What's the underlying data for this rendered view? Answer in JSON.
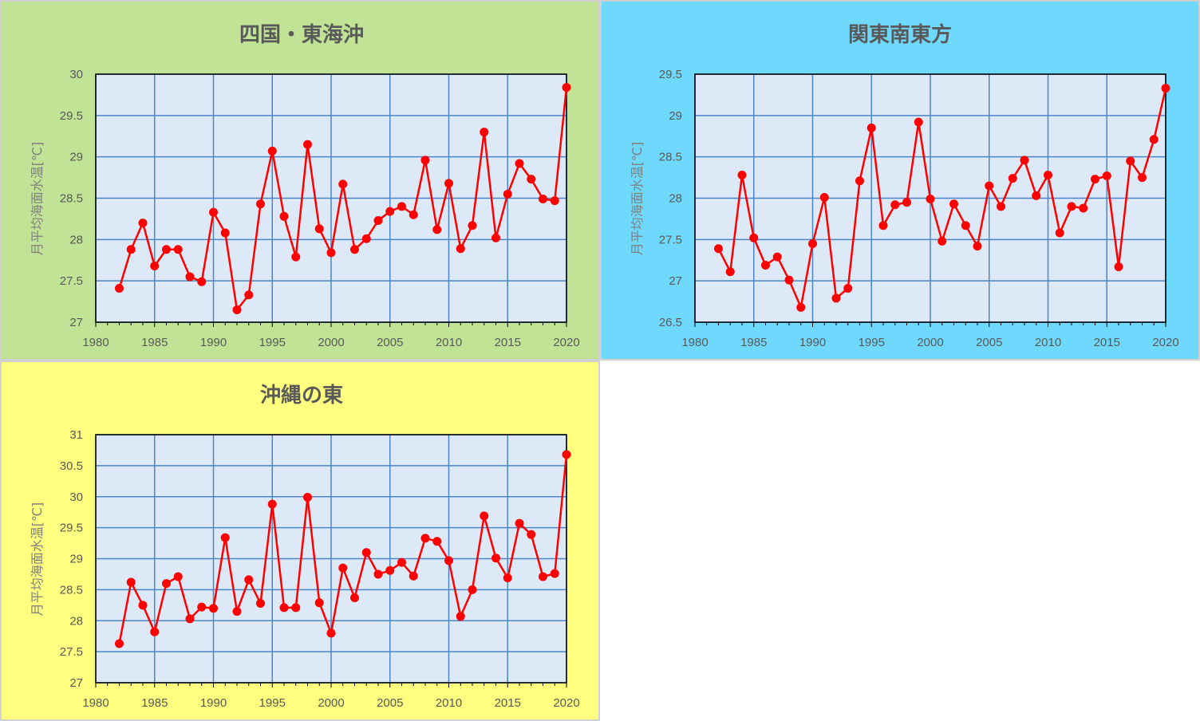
{
  "chart_data": [
    {
      "type": "line",
      "title": "四国・東海沖",
      "ylabel": "月平均海面水温[℃]",
      "xlabel": "",
      "xlim": [
        1980,
        2020
      ],
      "ylim": [
        27,
        30
      ],
      "xticks": [
        "1980",
        "1985",
        "1990",
        "1995",
        "2000",
        "2005",
        "2010",
        "2015",
        "2020"
      ],
      "yticks": [
        "27",
        "27.5",
        "28",
        "28.5",
        "29",
        "29.5",
        "30"
      ],
      "grid": true,
      "panel_bg": "#c0e396",
      "line_color": "#ff0000",
      "x": [
        1982,
        1983,
        1984,
        1985,
        1986,
        1987,
        1988,
        1989,
        1990,
        1991,
        1992,
        1993,
        1994,
        1995,
        1996,
        1997,
        1998,
        1999,
        2000,
        2001,
        2002,
        2003,
        2004,
        2005,
        2006,
        2007,
        2008,
        2009,
        2010,
        2011,
        2012,
        2013,
        2014,
        2015,
        2016,
        2017,
        2018,
        2019,
        2020
      ],
      "values": [
        27.41,
        27.88,
        28.2,
        27.68,
        27.88,
        27.88,
        27.55,
        27.49,
        28.33,
        28.08,
        27.15,
        27.33,
        28.43,
        29.07,
        28.28,
        27.79,
        29.15,
        28.13,
        27.84,
        28.67,
        27.88,
        28.01,
        28.23,
        28.34,
        28.4,
        28.3,
        28.96,
        28.12,
        28.68,
        27.89,
        28.17,
        29.3,
        28.02,
        28.55,
        28.92,
        28.73,
        28.49,
        28.47,
        29.84
      ]
    },
    {
      "type": "line",
      "title": "関東南東方",
      "ylabel": "月平均海面水温[℃]",
      "xlabel": "",
      "xlim": [
        1980,
        2020
      ],
      "ylim": [
        26.5,
        29.5
      ],
      "xticks": [
        "1980",
        "1985",
        "1990",
        "1995",
        "2000",
        "2005",
        "2010",
        "2015",
        "2020"
      ],
      "yticks": [
        "26.5",
        "27",
        "27.5",
        "28",
        "28.5",
        "29",
        "29.5"
      ],
      "grid": true,
      "panel_bg": "#6fd9fd",
      "line_color": "#ff0000",
      "x": [
        1982,
        1983,
        1984,
        1985,
        1986,
        1987,
        1988,
        1989,
        1990,
        1991,
        1992,
        1993,
        1994,
        1995,
        1996,
        1997,
        1998,
        1999,
        2000,
        2001,
        2002,
        2003,
        2004,
        2005,
        2006,
        2007,
        2008,
        2009,
        2010,
        2011,
        2012,
        2013,
        2014,
        2015,
        2016,
        2017,
        2018,
        2019,
        2020
      ],
      "values": [
        27.39,
        27.11,
        28.28,
        27.52,
        27.19,
        27.29,
        27.01,
        26.68,
        27.45,
        28.01,
        26.79,
        26.91,
        28.21,
        28.85,
        27.67,
        27.92,
        27.95,
        28.92,
        27.99,
        27.48,
        27.93,
        27.67,
        27.42,
        28.15,
        27.9,
        28.24,
        28.46,
        28.03,
        28.28,
        27.58,
        27.9,
        27.88,
        28.23,
        28.27,
        27.17,
        28.45,
        28.25,
        28.71,
        29.33
      ]
    },
    {
      "type": "line",
      "title": "沖縄の東",
      "ylabel": "月平均海面水温[℃]",
      "xlabel": "",
      "xlim": [
        1980,
        2020
      ],
      "ylim": [
        27,
        31
      ],
      "xticks": [
        "1980",
        "1985",
        "1990",
        "1995",
        "2000",
        "2005",
        "2010",
        "2015",
        "2020"
      ],
      "yticks": [
        "27",
        "27.5",
        "28",
        "28.5",
        "29",
        "29.5",
        "30",
        "30.5",
        "31"
      ],
      "grid": true,
      "panel_bg": "#ffff80",
      "line_color": "#ff0000",
      "x": [
        1982,
        1983,
        1984,
        1985,
        1986,
        1987,
        1988,
        1989,
        1990,
        1991,
        1992,
        1993,
        1994,
        1995,
        1996,
        1997,
        1998,
        1999,
        2000,
        2001,
        2002,
        2003,
        2004,
        2005,
        2006,
        2007,
        2008,
        2009,
        2010,
        2011,
        2012,
        2013,
        2014,
        2015,
        2016,
        2017,
        2018,
        2019,
        2020
      ],
      "values": [
        27.63,
        28.62,
        28.25,
        27.82,
        28.6,
        28.71,
        28.03,
        28.22,
        28.2,
        29.34,
        28.15,
        28.66,
        28.28,
        29.88,
        28.21,
        28.21,
        29.99,
        28.29,
        27.8,
        28.85,
        28.37,
        29.1,
        28.75,
        28.81,
        28.94,
        28.72,
        29.33,
        29.28,
        28.97,
        28.07,
        28.5,
        29.69,
        29.01,
        28.69,
        29.57,
        29.39,
        28.71,
        28.76,
        30.68
      ]
    }
  ]
}
